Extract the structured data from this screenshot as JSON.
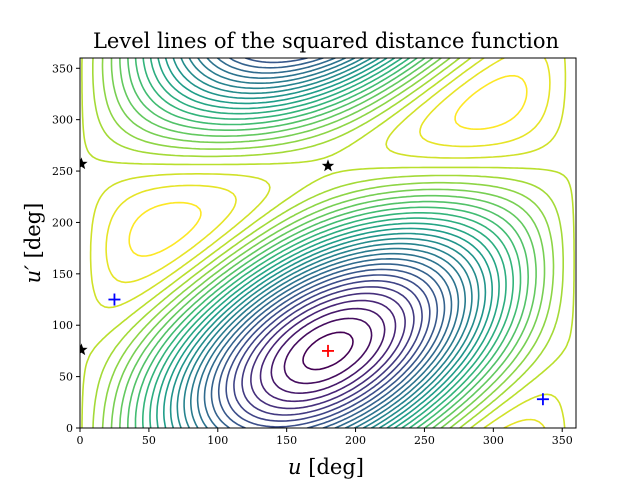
{
  "chart_data": {
    "type": "contour",
    "title": "Level lines of the squared distance function",
    "xlabel_var": "u",
    "xlabel_unit": " [deg]",
    "ylabel_var": "u′",
    "ylabel_unit": " [deg]",
    "xlim": [
      0,
      360
    ],
    "ylim": [
      0,
      360
    ],
    "xticks": [
      "0",
      "50",
      "100",
      "150",
      "200",
      "250",
      "300",
      "350"
    ],
    "yticks": [
      "0",
      "50",
      "100",
      "150",
      "200",
      "250",
      "300",
      "350"
    ],
    "colormap": "viridis",
    "grid": false,
    "level_count": 30,
    "maximum": {
      "u": 180,
      "u_prime": 75
    },
    "markers": [
      {
        "kind": "plus",
        "color": "#ff0000",
        "u": 180,
        "u_prime": 75
      },
      {
        "kind": "plus",
        "color": "#0000ff",
        "u": 25,
        "u_prime": 125
      },
      {
        "kind": "plus",
        "color": "#0000ff",
        "u": 336,
        "u_prime": 28
      },
      {
        "kind": "star",
        "color": "#000000",
        "u": 180,
        "u_prime": 255
      },
      {
        "kind": "star",
        "color": "#000000",
        "u": 1,
        "u_prime": 257
      },
      {
        "kind": "star",
        "color": "#000000",
        "u": 1,
        "u_prime": 76
      }
    ]
  }
}
